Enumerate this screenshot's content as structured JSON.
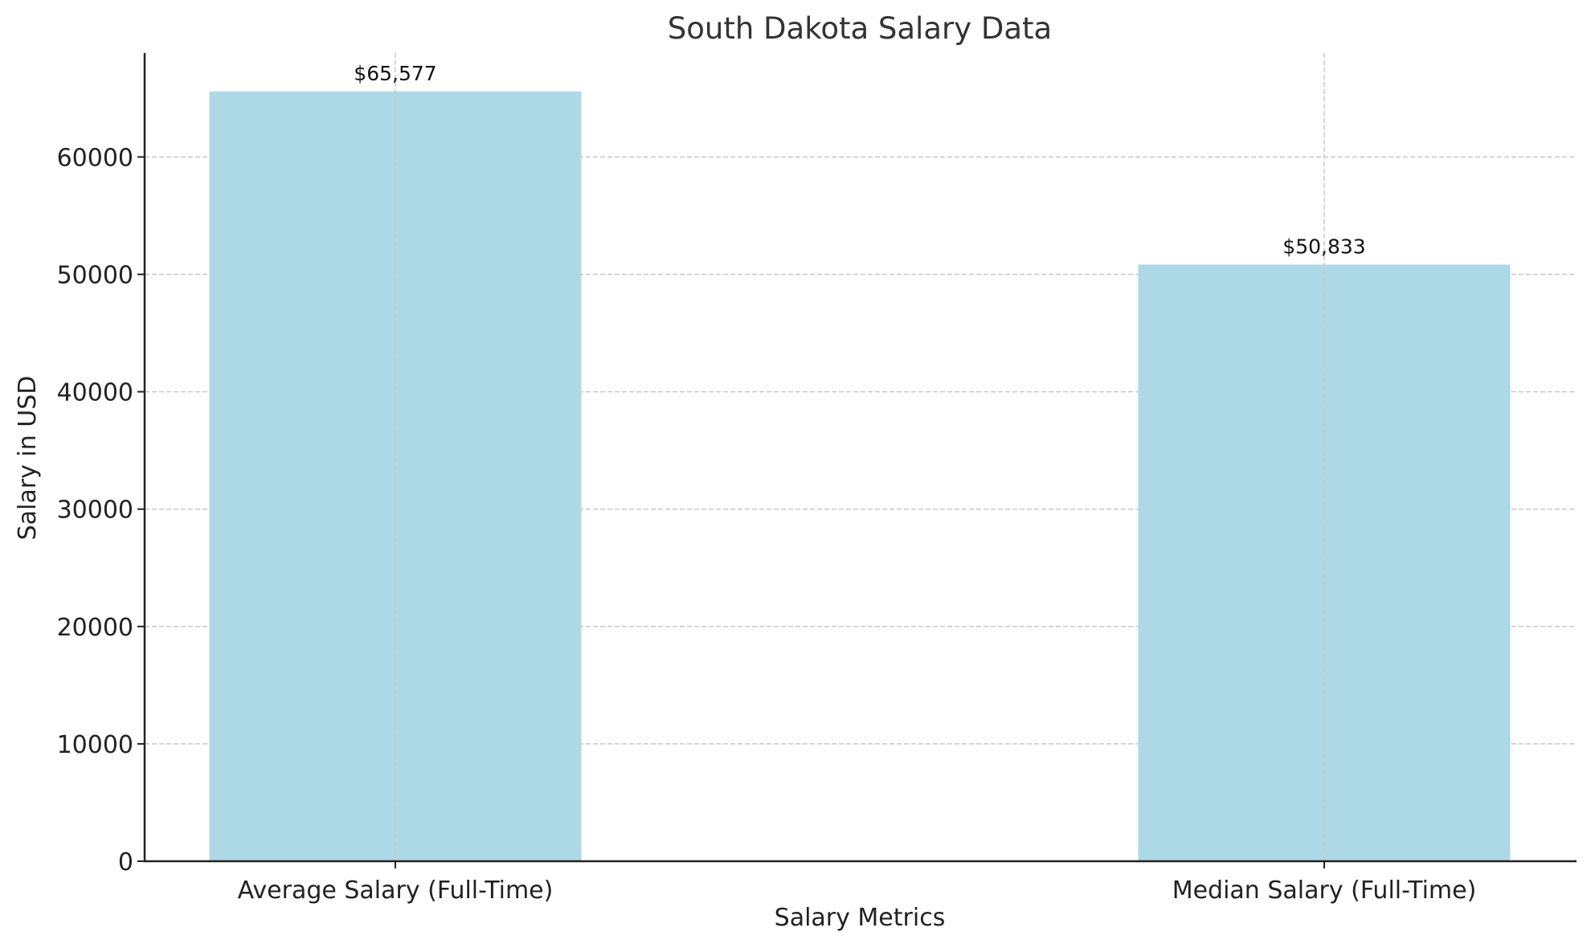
{
  "chart_data": {
    "type": "bar",
    "title": "South Dakota Salary Data",
    "xlabel": "Salary Metrics",
    "ylabel": "Salary in USD",
    "categories": [
      "Average Salary (Full-Time)",
      "Median Salary (Full-Time)"
    ],
    "values": [
      65577,
      50833
    ],
    "data_labels": [
      "$65,577",
      "$50,833"
    ],
    "yticks": [
      0,
      10000,
      20000,
      30000,
      40000,
      50000,
      60000
    ],
    "ytick_labels": [
      "0",
      "10000",
      "20000",
      "30000",
      "40000",
      "50000",
      "60000"
    ],
    "ylim": [
      0,
      68856
    ],
    "grid": true,
    "grid_style": "dashed",
    "legend": null,
    "colors": {
      "bar": "#ADD8E6",
      "grid": "#c8c8c8",
      "axis": "#222222",
      "title": "#333333"
    }
  }
}
